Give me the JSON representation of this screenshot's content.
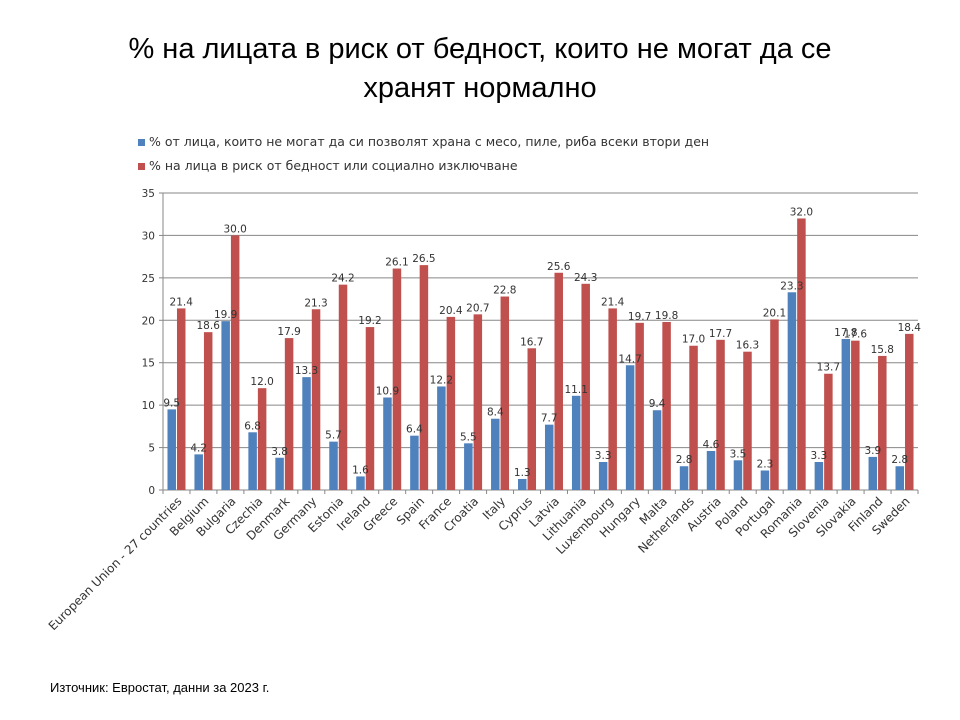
{
  "title": "% на лицата в риск от бедност, които не могат да се хранят нормално",
  "source": "Източник: Евростат, данни за 2023 г.",
  "colors": {
    "series1": "#4f81bd",
    "series2": "#c0504d",
    "grid": "#878787",
    "axis": "#878787"
  },
  "chart_data": {
    "type": "bar",
    "title": "",
    "xlabel": "",
    "ylabel": "",
    "ylim": [
      0,
      35
    ],
    "yticks": [
      0,
      5,
      10,
      15,
      20,
      25,
      30,
      35
    ],
    "grid": true,
    "legend_position": "top-left",
    "categories": [
      "European Union - 27 countries",
      "Belgium",
      "Bulgaria",
      "Czechia",
      "Denmark",
      "Germany",
      "Estonia",
      "Ireland",
      "Greece",
      "Spain",
      "France",
      "Croatia",
      "Italy",
      "Cyprus",
      "Latvia",
      "Lithuania",
      "Luxembourg",
      "Hungary",
      "Malta",
      "Netherlands",
      "Austria",
      "Poland",
      "Portugal",
      "Romania",
      "Slovenia",
      "Slovakia",
      "Finland",
      "Sweden"
    ],
    "series": [
      {
        "name": "% от лица, които не могат да си позволят храна с месо, пиле, риба всеки втори ден",
        "color": "#4f81bd",
        "values": [
          9.5,
          4.2,
          19.9,
          6.8,
          3.8,
          13.3,
          5.7,
          1.6,
          10.9,
          6.4,
          12.2,
          5.5,
          8.4,
          1.3,
          7.7,
          11.1,
          3.3,
          14.7,
          9.4,
          2.8,
          4.6,
          3.5,
          2.3,
          23.3,
          3.3,
          17.8,
          3.9,
          2.8
        ],
        "labels": [
          "9.5",
          "4.2",
          "19.9",
          "6.8",
          "3.8",
          "13.3",
          "5.7",
          "1.6",
          "10.9",
          "6.4",
          "12.2",
          "5.5",
          "8.4",
          "1.3",
          "7.7",
          "11.1",
          "3.3",
          "14.7",
          "9.4",
          "2.8",
          "4.6",
          "3.5",
          "2.3",
          "23.3",
          "3.3",
          "17.8",
          "3.9",
          "2.8"
        ]
      },
      {
        "name": "% на лица в риск от бедност или социално изключване",
        "color": "#c0504d",
        "values": [
          21.4,
          18.6,
          30.0,
          12.0,
          17.9,
          21.3,
          24.2,
          19.2,
          26.1,
          26.5,
          20.4,
          20.7,
          22.8,
          16.7,
          25.6,
          24.3,
          21.4,
          19.7,
          19.8,
          17.0,
          17.7,
          16.3,
          20.1,
          32.0,
          13.7,
          17.6,
          15.8,
          18.4
        ],
        "labels": [
          "21.4",
          "18.6",
          "30.0",
          "12.0",
          "17.9",
          "21.3",
          "24.2",
          "19.2",
          "26.1",
          "26.5",
          "20.4",
          "20.7",
          "22.8",
          "16.7",
          "25.6",
          "24.3",
          "21.4",
          "19.7",
          "19.8",
          "17.0",
          "17.7",
          "16.3",
          "20.1",
          "32.0",
          "13.7",
          "17.6",
          "15.8",
          "18.4"
        ]
      }
    ]
  }
}
